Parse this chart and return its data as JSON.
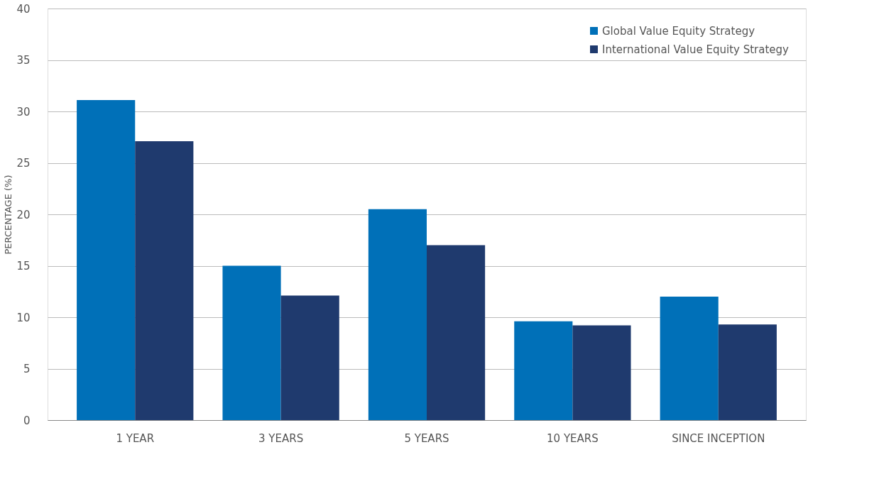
{
  "chart_data": {
    "type": "bar",
    "ylabel": "PERCENTAGE (%)",
    "categories": [
      "1 YEAR",
      "3 YEARS",
      "5 YEARS",
      "10 YEARS",
      "SINCE INCEPTION"
    ],
    "series": [
      {
        "name": "Global Value Equity Strategy",
        "color": "#0070b8",
        "values": [
          31.1,
          15.0,
          20.5,
          9.6,
          12.0
        ]
      },
      {
        "name": "International Value Equity Strategy",
        "color": "#1f3a6e",
        "values": [
          27.1,
          12.1,
          17.0,
          9.2,
          9.3
        ]
      }
    ],
    "ylim": [
      0,
      40
    ],
    "yticks": [
      0,
      5,
      10,
      15,
      20,
      25,
      30,
      35,
      40
    ],
    "grid": "y",
    "legend": "top right"
  }
}
